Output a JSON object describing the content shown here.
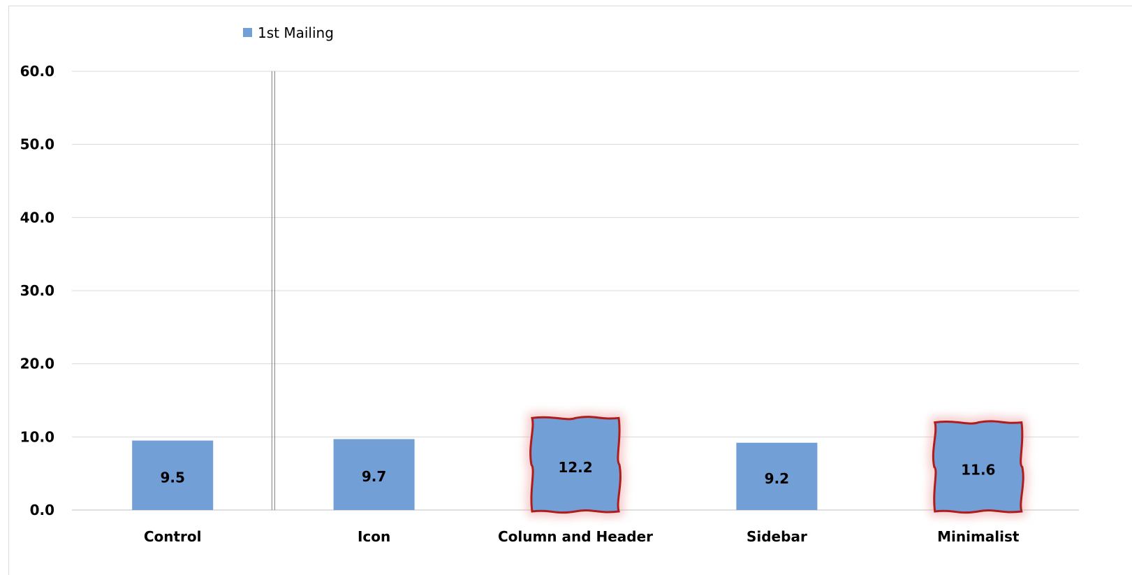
{
  "chart_data": {
    "type": "bar",
    "categories": [
      "Control",
      "Icon",
      "Column and Header",
      "Sidebar",
      "Minimalist"
    ],
    "series": [
      {
        "name": "1st Mailing",
        "values": [
          9.5,
          9.7,
          12.2,
          9.2,
          11.6
        ],
        "color": "#729fd6"
      }
    ],
    "title": "",
    "xlabel": "",
    "ylabel": "",
    "ylim": [
      0,
      60
    ],
    "yticks": [
      "0.0",
      "10.0",
      "20.0",
      "30.0",
      "40.0",
      "50.0",
      "60.0"
    ],
    "data_labels": [
      "9.5",
      "9.7",
      "12.2",
      "9.2",
      "11.6"
    ],
    "grid": true,
    "legend_position": "top-left",
    "highlighted_categories": [
      "Column and Header",
      "Minimalist"
    ],
    "highlight_color": "#b01c1c",
    "gridline_color": "#d9d9d9"
  }
}
